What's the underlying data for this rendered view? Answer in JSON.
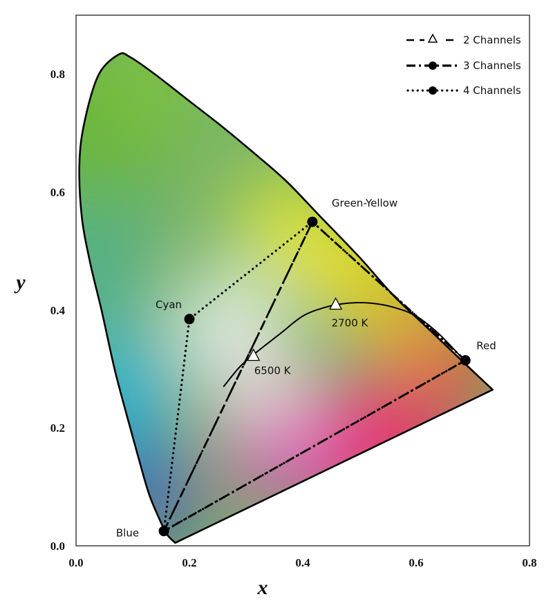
{
  "chart_data": {
    "type": "scatter",
    "title": "",
    "xlabel": "x",
    "ylabel": "y",
    "xlim": [
      0.0,
      0.8
    ],
    "ylim": [
      0.0,
      0.9
    ],
    "x_ticks": [
      "0.0",
      "0.2",
      "0.4",
      "0.6",
      "0.8"
    ],
    "y_ticks": [
      "0.0",
      "0.2",
      "0.4",
      "0.6",
      "0.8"
    ],
    "grid": false,
    "legend_position": "top-right",
    "spectral_locus": [
      [
        0.175,
        0.005
      ],
      [
        0.16,
        0.02
      ],
      [
        0.145,
        0.05
      ],
      [
        0.128,
        0.09
      ],
      [
        0.11,
        0.15
      ],
      [
        0.09,
        0.22
      ],
      [
        0.068,
        0.3
      ],
      [
        0.045,
        0.4
      ],
      [
        0.025,
        0.48
      ],
      [
        0.01,
        0.56
      ],
      [
        0.006,
        0.65
      ],
      [
        0.015,
        0.72
      ],
      [
        0.04,
        0.8
      ],
      [
        0.075,
        0.834
      ],
      [
        0.095,
        0.83
      ],
      [
        0.14,
        0.8
      ],
      [
        0.2,
        0.755
      ],
      [
        0.26,
        0.71
      ],
      [
        0.31,
        0.67
      ],
      [
        0.37,
        0.62
      ],
      [
        0.43,
        0.56
      ],
      [
        0.5,
        0.49
      ],
      [
        0.56,
        0.425
      ],
      [
        0.62,
        0.37
      ],
      [
        0.68,
        0.315
      ],
      [
        0.735,
        0.265
      ]
    ],
    "planckian_locus": [
      [
        0.26,
        0.27
      ],
      [
        0.29,
        0.305
      ],
      [
        0.32,
        0.33
      ],
      [
        0.36,
        0.36
      ],
      [
        0.4,
        0.39
      ],
      [
        0.44,
        0.405
      ],
      [
        0.48,
        0.412
      ],
      [
        0.52,
        0.412
      ],
      [
        0.56,
        0.405
      ],
      [
        0.6,
        0.39
      ],
      [
        0.64,
        0.36
      ],
      [
        0.68,
        0.32
      ]
    ],
    "primaries": [
      {
        "name": "Blue",
        "x": 0.155,
        "y": 0.025
      },
      {
        "name": "Cyan",
        "x": 0.2,
        "y": 0.385
      },
      {
        "name": "Green-Yellow",
        "x": 0.417,
        "y": 0.55
      },
      {
        "name": "Red",
        "x": 0.687,
        "y": 0.315
      }
    ],
    "white_points": [
      {
        "name": "6500 K",
        "x": 0.313,
        "y": 0.323
      },
      {
        "name": "2700 K",
        "x": 0.458,
        "y": 0.41
      }
    ],
    "series": [
      {
        "name": "2 Channels",
        "style": "dashed",
        "marker": "triangle-open",
        "points": [
          "Blue",
          "Green-Yellow"
        ]
      },
      {
        "name": "3 Channels",
        "style": "dash-dot",
        "marker": "circle-filled",
        "points": [
          "Blue",
          "Green-Yellow",
          "Red",
          "Blue"
        ]
      },
      {
        "name": "4 Channels",
        "style": "dotted",
        "marker": "circle-filled",
        "points": [
          "Blue",
          "Cyan",
          "Green-Yellow",
          "Red",
          "Blue"
        ]
      }
    ]
  }
}
